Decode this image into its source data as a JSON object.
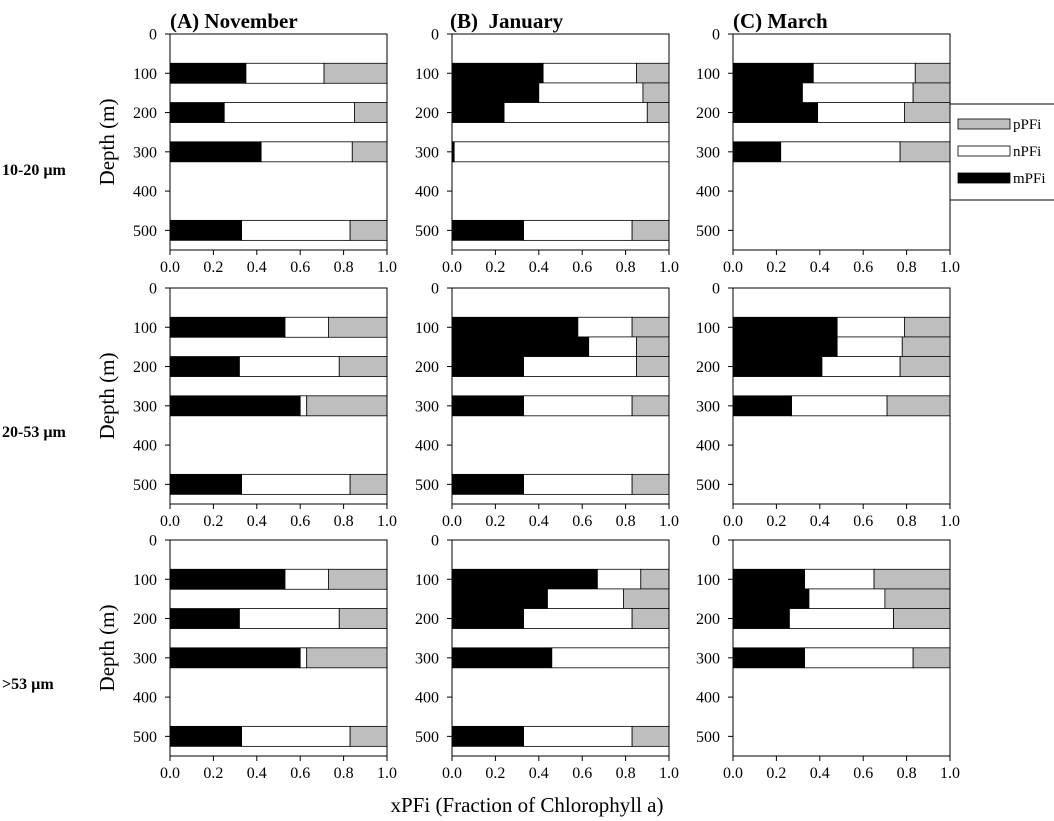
{
  "chart_data": {
    "type": "bar",
    "orientation": "horizontal",
    "stacked": true,
    "xlabel": "xPFi (Fraction of Chlorophyll a)",
    "ylabel": "Depth (m)",
    "xlim": [
      0,
      1
    ],
    "ylim": [
      0,
      550
    ],
    "x_ticks": [
      "0.0",
      "0.2",
      "0.4",
      "0.6",
      "0.8",
      "1.0"
    ],
    "y_ticks": [
      "0",
      "100",
      "200",
      "300",
      "400",
      "500"
    ],
    "x_tick_values": [
      0,
      0.2,
      0.4,
      0.6,
      0.8,
      1.0
    ],
    "y_tick_values": [
      0,
      100,
      200,
      300,
      400,
      500
    ],
    "legend": {
      "placement": "right",
      "entries": [
        {
          "key": "p",
          "label": "pPFi",
          "color": "#bebebe"
        },
        {
          "key": "n",
          "label": "nPFi",
          "color": "#ffffff"
        },
        {
          "key": "m",
          "label": "mPFi",
          "color": "#000000"
        }
      ]
    },
    "columns": [
      "(A) November",
      "(B)  January",
      "(C) March"
    ],
    "rows": [
      "10-20 µm",
      "20-53 µm",
      ">53 µm"
    ],
    "panels": [
      {
        "row": 0,
        "col": 0,
        "bars": [
          {
            "depth": 100,
            "m": 0.35,
            "n": 0.36,
            "p": 0.29
          },
          {
            "depth": 200,
            "m": 0.25,
            "n": 0.6,
            "p": 0.15
          },
          {
            "depth": 300,
            "m": 0.42,
            "n": 0.42,
            "p": 0.16
          },
          {
            "depth": 500,
            "m": 0.33,
            "n": 0.5,
            "p": 0.17
          }
        ]
      },
      {
        "row": 0,
        "col": 1,
        "bars": [
          {
            "depth": 100,
            "m": 0.42,
            "n": 0.43,
            "p": 0.15
          },
          {
            "depth": 150,
            "m": 0.4,
            "n": 0.48,
            "p": 0.12
          },
          {
            "depth": 200,
            "m": 0.24,
            "n": 0.66,
            "p": 0.1
          },
          {
            "depth": 300,
            "m": 0.01,
            "n": 0.99,
            "p": 0.0
          },
          {
            "depth": 500,
            "m": 0.33,
            "n": 0.5,
            "p": 0.17
          }
        ]
      },
      {
        "row": 0,
        "col": 2,
        "bars": [
          {
            "depth": 100,
            "m": 0.37,
            "n": 0.47,
            "p": 0.16
          },
          {
            "depth": 150,
            "m": 0.32,
            "n": 0.51,
            "p": 0.17
          },
          {
            "depth": 200,
            "m": 0.39,
            "n": 0.4,
            "p": 0.21
          },
          {
            "depth": 300,
            "m": 0.22,
            "n": 0.55,
            "p": 0.23
          }
        ]
      },
      {
        "row": 1,
        "col": 0,
        "bars": [
          {
            "depth": 100,
            "m": 0.53,
            "n": 0.2,
            "p": 0.27
          },
          {
            "depth": 200,
            "m": 0.32,
            "n": 0.46,
            "p": 0.22
          },
          {
            "depth": 300,
            "m": 0.6,
            "n": 0.03,
            "p": 0.37
          },
          {
            "depth": 500,
            "m": 0.33,
            "n": 0.5,
            "p": 0.17
          }
        ]
      },
      {
        "row": 1,
        "col": 1,
        "bars": [
          {
            "depth": 100,
            "m": 0.58,
            "n": 0.25,
            "p": 0.17
          },
          {
            "depth": 150,
            "m": 0.63,
            "n": 0.22,
            "p": 0.15
          },
          {
            "depth": 200,
            "m": 0.33,
            "n": 0.52,
            "p": 0.15
          },
          {
            "depth": 300,
            "m": 0.33,
            "n": 0.5,
            "p": 0.17
          },
          {
            "depth": 500,
            "m": 0.33,
            "n": 0.5,
            "p": 0.17
          }
        ]
      },
      {
        "row": 1,
        "col": 2,
        "bars": [
          {
            "depth": 100,
            "m": 0.48,
            "n": 0.31,
            "p": 0.21
          },
          {
            "depth": 150,
            "m": 0.48,
            "n": 0.3,
            "p": 0.22
          },
          {
            "depth": 200,
            "m": 0.41,
            "n": 0.36,
            "p": 0.23
          },
          {
            "depth": 300,
            "m": 0.27,
            "n": 0.44,
            "p": 0.29
          }
        ]
      },
      {
        "row": 2,
        "col": 0,
        "bars": [
          {
            "depth": 100,
            "m": 0.53,
            "n": 0.2,
            "p": 0.27
          },
          {
            "depth": 200,
            "m": 0.32,
            "n": 0.46,
            "p": 0.22
          },
          {
            "depth": 300,
            "m": 0.6,
            "n": 0.03,
            "p": 0.37
          },
          {
            "depth": 500,
            "m": 0.33,
            "n": 0.5,
            "p": 0.17
          }
        ]
      },
      {
        "row": 2,
        "col": 1,
        "bars": [
          {
            "depth": 100,
            "m": 0.67,
            "n": 0.2,
            "p": 0.13
          },
          {
            "depth": 150,
            "m": 0.44,
            "n": 0.35,
            "p": 0.21
          },
          {
            "depth": 200,
            "m": 0.33,
            "n": 0.5,
            "p": 0.17
          },
          {
            "depth": 300,
            "m": 0.46,
            "n": 0.54,
            "p": 0.0
          },
          {
            "depth": 500,
            "m": 0.33,
            "n": 0.5,
            "p": 0.17
          }
        ]
      },
      {
        "row": 2,
        "col": 2,
        "bars": [
          {
            "depth": 100,
            "m": 0.33,
            "n": 0.32,
            "p": 0.35
          },
          {
            "depth": 150,
            "m": 0.35,
            "n": 0.35,
            "p": 0.3
          },
          {
            "depth": 200,
            "m": 0.26,
            "n": 0.48,
            "p": 0.26
          },
          {
            "depth": 300,
            "m": 0.33,
            "n": 0.5,
            "p": 0.17
          }
        ]
      }
    ]
  }
}
